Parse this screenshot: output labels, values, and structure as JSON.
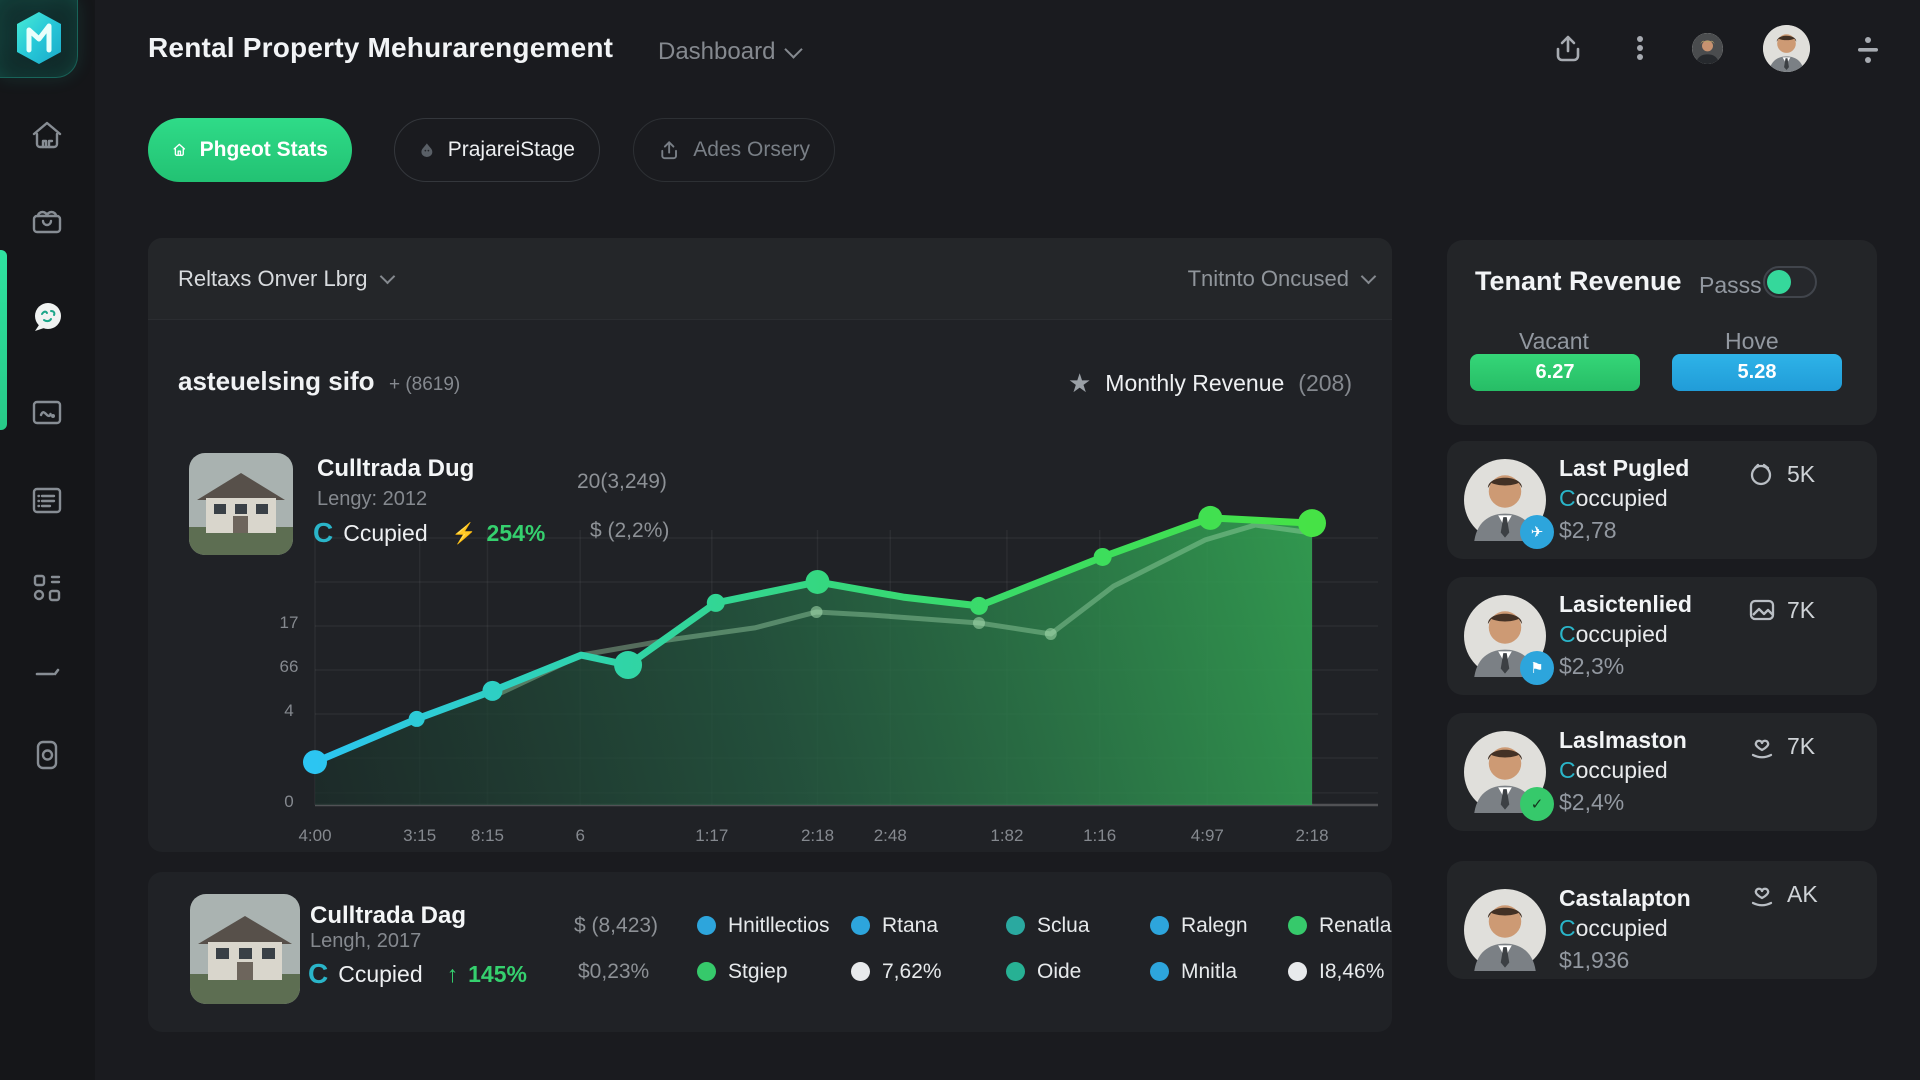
{
  "header": {
    "title": "Rental Property Mehurarengement",
    "nav": "Dashboard"
  },
  "pills": [
    {
      "label": "Phgeot Stats"
    },
    {
      "label": "PrajareiStage"
    },
    {
      "label": "Ades Orsery"
    }
  ],
  "chart_panel": {
    "left_dropdown": "Reltaxs Onver Lbrg",
    "right_dropdown": "Tnitnto Oncused",
    "section_title": "asteuelsing sifo",
    "section_suffix": "+ (8619)",
    "legend_label": "Monthly Revenue",
    "legend_count": "(208)",
    "property": {
      "name": "Culltrada Dug",
      "sub": "Lengy: 2012",
      "status_icon": "C",
      "status": "Ccupied",
      "change": "254%",
      "value1": "20(3,249)",
      "value2": "$ (2,2%)"
    }
  },
  "chart_data": {
    "type": "line-area",
    "title": "Rental revenue over time (labels are stylized/garbled in source)",
    "x_ticks": [
      {
        "label": "4:00",
        "f": 0.0
      },
      {
        "label": "3:15",
        "f": 0.105
      },
      {
        "label": "8:15",
        "f": 0.173
      },
      {
        "label": "6",
        "f": 0.266
      },
      {
        "label": "1:17",
        "f": 0.398
      },
      {
        "label": "2:18",
        "f": 0.504
      },
      {
        "label": "2:48",
        "f": 0.577
      },
      {
        "label": "1:82",
        "f": 0.694
      },
      {
        "label": "1:16",
        "f": 0.787
      },
      {
        "label": "4:97",
        "f": 0.895
      },
      {
        "label": "2:18",
        "f": 1.0
      }
    ],
    "y_ticks": [
      {
        "label": "17",
        "f": 0.651
      },
      {
        "label": "66",
        "f": 0.491
      },
      {
        "label": "4",
        "f": 0.331
      },
      {
        "label": "0",
        "f": 0.0
      }
    ],
    "grid_y": [
      0.971,
      0.811,
      0.651,
      0.491,
      0.331,
      0.171,
      0.044
    ],
    "series": [
      {
        "name": "main",
        "points": [
          [
            0.0,
            0.156,
            12
          ],
          [
            0.102,
            0.313,
            8
          ],
          [
            0.178,
            0.415,
            10
          ],
          [
            0.267,
            0.545,
            0
          ],
          [
            0.314,
            0.509,
            14
          ],
          [
            0.402,
            0.735,
            9
          ],
          [
            0.504,
            0.811,
            12
          ],
          [
            0.59,
            0.756,
            0
          ],
          [
            0.666,
            0.724,
            9
          ],
          [
            0.79,
            0.902,
            9
          ],
          [
            0.898,
            1.044,
            12
          ],
          [
            1.0,
            1.025,
            14
          ]
        ]
      },
      {
        "name": "secondary",
        "points": [
          [
            0.178,
            0.393,
            0
          ],
          [
            0.267,
            0.545,
            0
          ],
          [
            0.354,
            0.6,
            0
          ],
          [
            0.441,
            0.644,
            0
          ],
          [
            0.503,
            0.702,
            6
          ],
          [
            0.557,
            0.691,
            0
          ],
          [
            0.666,
            0.662,
            6
          ],
          [
            0.738,
            0.622,
            6
          ],
          [
            0.801,
            0.796,
            0
          ],
          [
            0.893,
            0.964,
            0
          ],
          [
            0.943,
            1.018,
            0
          ],
          [
            1.0,
            0.989,
            0
          ]
        ]
      }
    ],
    "colors": {
      "line_start": "#2cc5f2",
      "line_end": "#46e246",
      "area_dark": "#1b2e2a",
      "area_bright": "#33a453"
    }
  },
  "bottom_panel": {
    "property": {
      "name": "Culltrada Dag",
      "sub": "Lengh, 2017",
      "status_icon": "C",
      "status": "Ccupied",
      "change": "145%"
    },
    "values": {
      "v1": "$ (8,423)",
      "v2": "$0,23%"
    },
    "legend": [
      {
        "top": {
          "label": "Hnitllectios",
          "color": "#2da5dc"
        },
        "bottom": {
          "label": "Stgiep",
          "color": "#36c96b"
        }
      },
      {
        "top": {
          "label": "Rtana",
          "color": "#2da5dc"
        },
        "bottom": {
          "label": "7,62%",
          "color": "#e8eaec"
        }
      },
      {
        "top": {
          "label": "Sclua",
          "color": "#2aa9a0"
        },
        "bottom": {
          "label": "Oide",
          "color": "#27b194"
        }
      },
      {
        "top": {
          "label": "Ralegn",
          "color": "#2da5dc"
        },
        "bottom": {
          "label": "Mnitla",
          "color": "#2da5dc"
        }
      },
      {
        "top": {
          "label": "Renatla",
          "color": "#36c96b"
        },
        "bottom": {
          "label": "I8,46%",
          "color": "#e8eaec"
        }
      }
    ]
  },
  "revenue_panel": {
    "title": "Tenant Revenue",
    "toggle_label": "Passs",
    "col1_label": "Vacant",
    "col2_label": "Hove",
    "col1_value": "6.27",
    "col2_value": "5.28",
    "green": "#2fcf6f",
    "blue": "#28a9e1"
  },
  "tenants": [
    {
      "name": "Last Pugled",
      "status": "Coccupied",
      "amount": "$2,78",
      "count": "5K",
      "badge_color": "#2da5dc"
    },
    {
      "name": "Lasictenlied",
      "status": "Coccupied",
      "amount": "$2,3%",
      "count": "7K",
      "badge_color": "#2da5dc"
    },
    {
      "name": "Laslmaston",
      "status": "Coccupied",
      "amount": "$2,4%",
      "count": "7K",
      "badge_color": "#36c96b"
    },
    {
      "name": "Castalapton",
      "status": "Coccupied",
      "amount": "$1,936",
      "count": "AK",
      "badge_color": ""
    }
  ]
}
